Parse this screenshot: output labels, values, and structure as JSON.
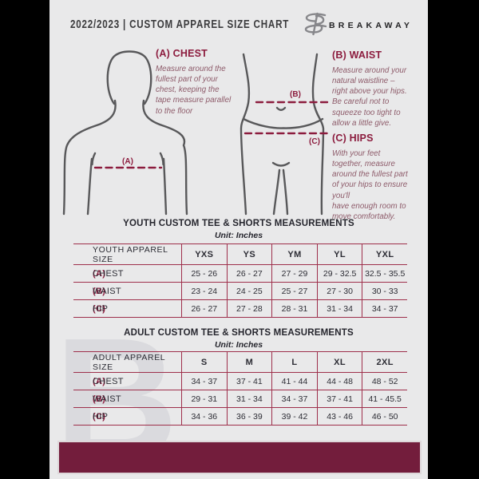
{
  "header": {
    "title": "2022/2023  |  CUSTOM APPAREL SIZE CHART",
    "brand": "BREAKAWAY"
  },
  "instructions": [
    {
      "heading": "(A) CHEST",
      "body": "Measure around the\nfullest part of your\nchest, keeping the\ntape measure parallel\nto the floor"
    },
    {
      "heading": "(B) WAIST",
      "body": "Measure around your\nnatural waistline –\nright above your hips.\nBe careful not to\nsqueeze too tight to\nallow a little give."
    },
    {
      "heading": "(C) HIPS",
      "body": "With your feet\ntogether, measure\naround the fullest part\nof your hips to ensure\nyou'll\nhave enough room to\nmove comfortably."
    }
  ],
  "diagram": {
    "chest_label": "(A)",
    "waist_label": "(B)",
    "hips_label": "(C)"
  },
  "tables": [
    {
      "title": "YOUTH CUSTOM TEE & SHORTS MEASUREMENTS",
      "unit": "Unit: Inches",
      "header": [
        "YOUTH APPAREL SIZE",
        "YXS",
        "YS",
        "YM",
        "YL",
        "YXL"
      ],
      "rows": [
        {
          "prefix": "(A)",
          "label": "CHEST",
          "values": [
            "25 - 26",
            "26 - 27",
            "27 - 29",
            "29 - 32.5",
            "32.5 - 35.5"
          ]
        },
        {
          "prefix": "(B)",
          "label": "WAIST",
          "values": [
            "23 - 24",
            "24 - 25",
            "25 - 27",
            "27 - 30",
            "30 - 33"
          ]
        },
        {
          "prefix": "(C)",
          "label": "HIP",
          "values": [
            "26 - 27",
            "27 - 28",
            "28 - 31",
            "31 - 34",
            "34 - 37"
          ]
        }
      ]
    },
    {
      "title": "ADULT CUSTOM TEE & SHORTS MEASUREMENTS",
      "unit": "Unit: Inches",
      "header": [
        "ADULT APPAREL SIZE",
        "S",
        "M",
        "L",
        "XL",
        "2XL"
      ],
      "rows": [
        {
          "prefix": "(A)",
          "label": "CHEST",
          "values": [
            "34 - 37",
            "37 - 41",
            "41 - 44",
            "44 - 48",
            "48 - 52"
          ]
        },
        {
          "prefix": "(B)",
          "label": "WAIST",
          "values": [
            "29 - 31",
            "31 - 34",
            "34 - 37",
            "37 - 41",
            "41 - 45.5"
          ]
        },
        {
          "prefix": "(C)",
          "label": "HIP",
          "values": [
            "34 - 36",
            "36 - 39",
            "39 - 42",
            "43 - 46",
            "46 - 50"
          ]
        }
      ]
    }
  ],
  "watermark": "B",
  "colors": {
    "maroon": "#8c1c3e",
    "table_line": "#9e2f4b",
    "footer_bar": "#731d3c",
    "document_bg": "#e9e9ea",
    "text_dark": "#2c2c34",
    "instruction_text": "#8d5a69",
    "figure_stroke": "#58585a"
  }
}
